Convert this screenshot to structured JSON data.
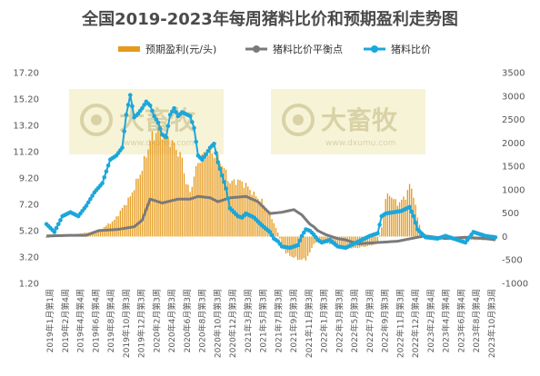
{
  "title": "全国2019-2023年每周猪料比价和预期盈利走势图",
  "watermark": {
    "brand": "大畜牧",
    "url": "www.dxumu.com"
  },
  "colors": {
    "profit_bar": "#E59A1C",
    "breakeven_line": "#7A7A7A",
    "ratio_line": "#1BA7DC",
    "watermark_box": "#F6F1D0"
  },
  "chart_data": {
    "type": "bar+line",
    "title": "全国2019-2023年每周猪料比价和预期盈利走势图",
    "legend_position": "top-center",
    "grid": false,
    "left_axis": {
      "ticks": [
        1.2,
        3.2,
        5.2,
        7.2,
        9.2,
        11.2,
        13.2,
        15.2,
        17.2
      ],
      "range": [
        1.2,
        17.2
      ]
    },
    "right_axis": {
      "ticks": [
        -1000,
        -500,
        0,
        500,
        1000,
        1500,
        2000,
        2500,
        3000,
        3500
      ],
      "range": [
        -1000,
        3500
      ]
    },
    "x_tick_labels": [
      "2019年1月第1周",
      "2019年2月第4周",
      "2019年4月第4周",
      "2019年6月第4周",
      "2019年8月第4周",
      "2019年10月第3周",
      "2019年12月第3周",
      "2020年2月第3周",
      "2020年4月第3周",
      "2020年6月第3周",
      "2020年8月第3周",
      "2020年10月第3周",
      "2020年12月第3周",
      "2021年3月第3周",
      "2021年5月第3周",
      "2021年7月第3周",
      "2021年9月第3周",
      "2021年11月第3周",
      "2022年1月第3周",
      "2022年3月第3周",
      "2022年5月第3周",
      "2022年7月第3周",
      "2022年9月第3周",
      "2022年11月第3周",
      "2022年12月第4周",
      "2023年2月第4周",
      "2023年4月第4周",
      "2023年6月第4周",
      "2023年8月第4周",
      "2023年10月第3周"
    ],
    "series": [
      {
        "name": "预期盈利(元/头)",
        "type": "bar",
        "axis": "right",
        "keypoints": [
          [
            0,
            -30
          ],
          [
            8,
            0
          ],
          [
            16,
            60
          ],
          [
            26,
            120
          ],
          [
            34,
            350
          ],
          [
            42,
            850
          ],
          [
            48,
            1450
          ],
          [
            52,
            2050
          ],
          [
            56,
            2300
          ],
          [
            60,
            2150
          ],
          [
            64,
            1950
          ],
          [
            68,
            1650
          ],
          [
            70,
            1150
          ],
          [
            72,
            950
          ],
          [
            76,
            1600
          ],
          [
            80,
            1800
          ],
          [
            84,
            1750
          ],
          [
            88,
            1550
          ],
          [
            92,
            1150
          ],
          [
            96,
            1200
          ],
          [
            100,
            1100
          ],
          [
            104,
            900
          ],
          [
            108,
            750
          ],
          [
            112,
            500
          ],
          [
            116,
            80
          ],
          [
            118,
            -180
          ],
          [
            120,
            -350
          ],
          [
            124,
            -450
          ],
          [
            128,
            -500
          ],
          [
            130,
            -480
          ],
          [
            132,
            -350
          ],
          [
            134,
            -150
          ],
          [
            138,
            -100
          ],
          [
            146,
            -220
          ],
          [
            154,
            -250
          ],
          [
            162,
            -200
          ],
          [
            166,
            -150
          ],
          [
            168,
            200
          ],
          [
            170,
            820
          ],
          [
            172,
            900
          ],
          [
            176,
            700
          ],
          [
            180,
            850
          ],
          [
            182,
            1100
          ],
          [
            184,
            900
          ],
          [
            186,
            400
          ],
          [
            188,
            100
          ],
          [
            190,
            0
          ],
          [
            200,
            -50
          ],
          [
            210,
            -70
          ],
          [
            225,
            -80
          ]
        ]
      },
      {
        "name": "猪料比价平衡点",
        "type": "line",
        "axis": "left",
        "keypoints": [
          [
            0,
            4.8
          ],
          [
            12,
            4.85
          ],
          [
            20,
            4.85
          ],
          [
            26,
            5.2
          ],
          [
            36,
            5.3
          ],
          [
            44,
            5.5
          ],
          [
            48,
            6.0
          ],
          [
            52,
            7.6
          ],
          [
            58,
            7.3
          ],
          [
            66,
            7.6
          ],
          [
            72,
            7.6
          ],
          [
            76,
            7.8
          ],
          [
            82,
            7.7
          ],
          [
            86,
            7.4
          ],
          [
            92,
            7.7
          ],
          [
            100,
            7.8
          ],
          [
            106,
            7.4
          ],
          [
            112,
            6.5
          ],
          [
            118,
            6.6
          ],
          [
            124,
            6.8
          ],
          [
            128,
            6.4
          ],
          [
            132,
            5.7
          ],
          [
            134,
            5.5
          ],
          [
            136,
            5.2
          ],
          [
            140,
            4.9
          ],
          [
            146,
            4.6
          ],
          [
            150,
            4.5
          ],
          [
            156,
            4.2
          ],
          [
            166,
            4.3
          ],
          [
            176,
            4.4
          ],
          [
            186,
            4.7
          ],
          [
            190,
            4.8
          ],
          [
            200,
            4.6
          ],
          [
            210,
            4.7
          ],
          [
            220,
            4.6
          ],
          [
            225,
            4.5
          ]
        ]
      },
      {
        "name": "猪料比价",
        "type": "line",
        "axis": "left",
        "keypoints": [
          [
            0,
            5.7
          ],
          [
            4,
            5.1
          ],
          [
            8,
            6.3
          ],
          [
            12,
            6.6
          ],
          [
            16,
            6.3
          ],
          [
            20,
            7.1
          ],
          [
            24,
            8.1
          ],
          [
            28,
            8.8
          ],
          [
            32,
            10.6
          ],
          [
            35,
            10.9
          ],
          [
            38,
            11.5
          ],
          [
            40,
            14.0
          ],
          [
            42,
            15.5
          ],
          [
            44,
            13.8
          ],
          [
            46,
            14.1
          ],
          [
            48,
            14.5
          ],
          [
            50,
            15.0
          ],
          [
            52,
            14.7
          ],
          [
            54,
            13.9
          ],
          [
            56,
            13.4
          ],
          [
            58,
            12.5
          ],
          [
            60,
            12.3
          ],
          [
            62,
            14.0
          ],
          [
            64,
            14.5
          ],
          [
            66,
            13.9
          ],
          [
            68,
            14.2
          ],
          [
            72,
            13.9
          ],
          [
            74,
            13.0
          ],
          [
            76,
            10.9
          ],
          [
            78,
            10.6
          ],
          [
            80,
            11.0
          ],
          [
            82,
            11.5
          ],
          [
            84,
            11.8
          ],
          [
            86,
            10.4
          ],
          [
            88,
            9.4
          ],
          [
            90,
            8.4
          ],
          [
            92,
            6.9
          ],
          [
            96,
            6.3
          ],
          [
            98,
            6.2
          ],
          [
            100,
            6.5
          ],
          [
            104,
            6.2
          ],
          [
            108,
            5.6
          ],
          [
            112,
            5.1
          ],
          [
            114,
            4.6
          ],
          [
            116,
            4.4
          ],
          [
            118,
            4.0
          ],
          [
            122,
            3.9
          ],
          [
            126,
            4.1
          ],
          [
            128,
            4.8
          ],
          [
            130,
            5.3
          ],
          [
            132,
            5.2
          ],
          [
            134,
            4.9
          ],
          [
            136,
            4.5
          ],
          [
            138,
            4.3
          ],
          [
            142,
            4.5
          ],
          [
            146,
            4.0
          ],
          [
            150,
            3.9
          ],
          [
            154,
            4.2
          ],
          [
            158,
            4.5
          ],
          [
            162,
            4.8
          ],
          [
            166,
            5.0
          ],
          [
            168,
            6.3
          ],
          [
            170,
            6.5
          ],
          [
            174,
            6.6
          ],
          [
            178,
            6.7
          ],
          [
            182,
            7.0
          ],
          [
            184,
            6.3
          ],
          [
            186,
            5.3
          ],
          [
            188,
            5.0
          ],
          [
            190,
            4.7
          ],
          [
            196,
            4.6
          ],
          [
            200,
            4.8
          ],
          [
            206,
            4.5
          ],
          [
            210,
            4.3
          ],
          [
            214,
            5.1
          ],
          [
            220,
            4.8
          ],
          [
            225,
            4.7
          ]
        ]
      }
    ]
  }
}
